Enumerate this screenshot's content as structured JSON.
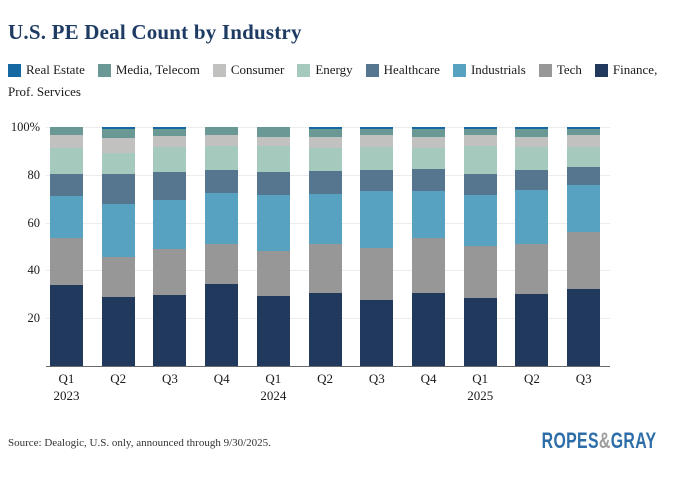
{
  "title": "U.S. PE Deal Count by Industry",
  "legend": {
    "items": [
      {
        "label": "Real Estate",
        "color": "#1668a2"
      },
      {
        "label": "Media, Telecom",
        "color": "#6a9894"
      },
      {
        "label": "Consumer",
        "color": "#c1c1c0"
      },
      {
        "label": "Energy",
        "color": "#a5c9bd"
      },
      {
        "label": "Healthcare",
        "color": "#567690"
      },
      {
        "label": "Industrials",
        "color": "#56a2c0"
      },
      {
        "label": "Tech",
        "color": "#979797"
      },
      {
        "label": "Finance,",
        "color": "#21395c"
      }
    ],
    "row2": "Prof. Services"
  },
  "chart_data": {
    "type": "bar",
    "stacked": true,
    "percent": true,
    "title": "U.S. PE Deal Count by Industry",
    "xlabel": "",
    "ylabel": "",
    "ylim": [
      0,
      100
    ],
    "grid": true,
    "legend_position": "top",
    "categories": [
      "Q1",
      "Q2",
      "Q3",
      "Q4",
      "Q1",
      "Q2",
      "Q3",
      "Q4",
      "Q1",
      "Q2",
      "Q3"
    ],
    "year_labels": [
      {
        "index": 0,
        "label": "2023"
      },
      {
        "index": 4,
        "label": "2024"
      },
      {
        "index": 8,
        "label": "2025"
      }
    ],
    "yticks": [
      {
        "value": 100,
        "label": "100%"
      },
      {
        "value": 80,
        "label": "80"
      },
      {
        "value": 60,
        "label": "60"
      },
      {
        "value": 40,
        "label": "40"
      },
      {
        "value": 20,
        "label": "20"
      }
    ],
    "series": [
      {
        "name": "Finance, Prof. Services",
        "color": "#21395c",
        "values": [
          34.1,
          28.9,
          29.9,
          34.2,
          29.2,
          30.7,
          27.5,
          30.5,
          28.6,
          30.1,
          32.1
        ]
      },
      {
        "name": "Tech",
        "color": "#979797",
        "values": [
          19.6,
          16.7,
          19.2,
          17.0,
          18.8,
          20.5,
          21.9,
          23.1,
          21.7,
          21.1,
          23.9
        ]
      },
      {
        "name": "Industrials",
        "color": "#56a2c0",
        "values": [
          17.3,
          22.1,
          20.5,
          21.2,
          23.4,
          20.9,
          23.8,
          19.6,
          21.1,
          22.3,
          19.6
        ]
      },
      {
        "name": "Healthcare",
        "color": "#567690",
        "values": [
          9.2,
          12.8,
          11.6,
          9.8,
          9.8,
          9.5,
          8.7,
          9.4,
          9.1,
          8.4,
          7.6
        ]
      },
      {
        "name": "Energy",
        "color": "#a5c9bd",
        "values": [
          10.9,
          8.8,
          10.4,
          9.8,
          10.8,
          9.5,
          9.7,
          8.5,
          11.5,
          9.7,
          8.4
        ]
      },
      {
        "name": "Consumer",
        "color": "#c1c1c0",
        "values": [
          5.6,
          6.0,
          4.7,
          4.7,
          3.8,
          4.7,
          5.1,
          4.7,
          4.7,
          4.2,
          4.9
        ]
      },
      {
        "name": "Media, Telecom",
        "color": "#6a9894",
        "values": [
          3.3,
          3.7,
          2.7,
          3.3,
          4.2,
          3.2,
          2.3,
          3.2,
          2.3,
          3.2,
          2.5
        ]
      },
      {
        "name": "Real Estate",
        "color": "#1668a2",
        "values": [
          0,
          1.0,
          1.0,
          0,
          0,
          1.0,
          1.0,
          1.0,
          1.0,
          1.0,
          1.0
        ]
      }
    ]
  },
  "source": "Source: Dealogic, U.S. only, announced through 9/30/2025.",
  "logo": {
    "part1": "ROPES",
    "amp": "&",
    "part2": "GRAY",
    "color": "#2e6ea8",
    "amp_color": "#9e9e9e"
  }
}
